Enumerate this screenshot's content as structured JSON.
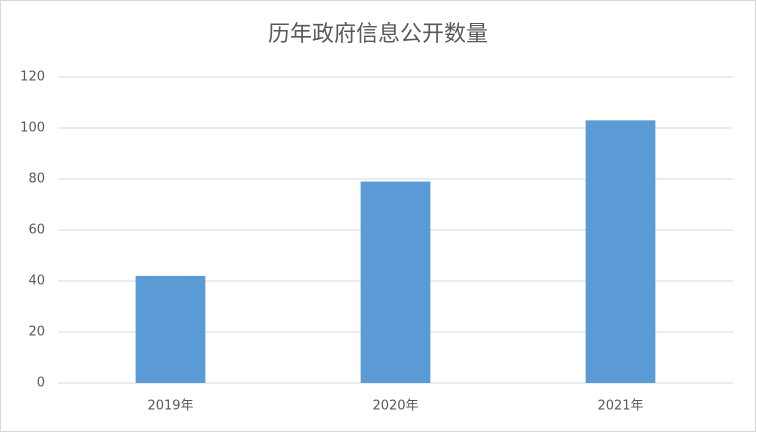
{
  "chart_data": {
    "type": "bar",
    "title": "历年政府信息公开数量",
    "categories": [
      "2019年",
      "2020年",
      "2021年"
    ],
    "values": [
      42,
      79,
      103
    ],
    "color": "#5b9bd5",
    "ylim": [
      0,
      120
    ],
    "yticks": [
      0,
      20,
      40,
      60,
      80,
      100,
      120
    ],
    "grid": true
  }
}
